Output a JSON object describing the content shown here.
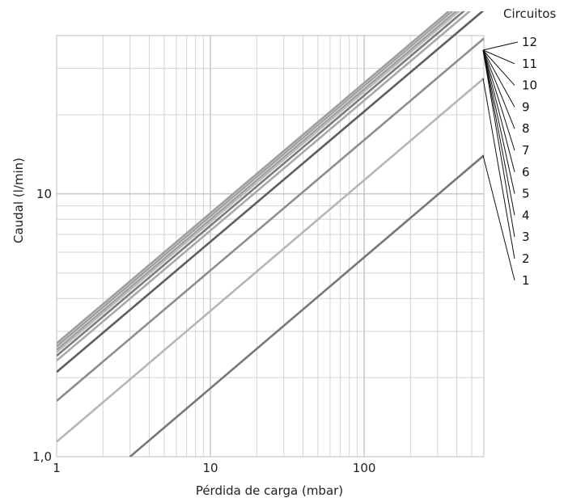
{
  "chart_data": {
    "type": "line",
    "xlabel": "Pérdida de carga (mbar)",
    "ylabel": "Caudal (l/min)",
    "xscale": "log",
    "yscale": "log",
    "xlim": [
      1,
      600
    ],
    "ylim": [
      1,
      40
    ],
    "x_ticks": [
      {
        "value": 1,
        "label": "1"
      },
      {
        "value": 10,
        "label": "10"
      },
      {
        "value": 100,
        "label": "100"
      }
    ],
    "y_ticks": [
      {
        "value": 1,
        "label": "1,0"
      },
      {
        "value": 10,
        "label": "10"
      }
    ],
    "grid": true,
    "legend_title": "Circuitos",
    "series": [
      {
        "name": "1",
        "color": "#777777",
        "points": [
          [
            3.0,
            1.0
          ],
          [
            600,
            14.0
          ]
        ]
      },
      {
        "name": "2",
        "color": "#b6b6b6",
        "points": [
          [
            1,
            1.14
          ],
          [
            600,
            27.5
          ]
        ]
      },
      {
        "name": "3",
        "color": "#8e8e8e",
        "points": [
          [
            1,
            1.63
          ],
          [
            600,
            39.0
          ]
        ]
      },
      {
        "name": "4",
        "color": "#5e5e5e",
        "points": [
          [
            1,
            2.1
          ],
          [
            600,
            50.0
          ]
        ]
      },
      {
        "name": "5",
        "color": "#a8a8a8",
        "points": [
          [
            1,
            2.32
          ],
          [
            600,
            55.0
          ]
        ]
      },
      {
        "name": "6",
        "color": "#7b7b7b",
        "points": [
          [
            1,
            2.42
          ],
          [
            600,
            57.5
          ]
        ]
      },
      {
        "name": "7",
        "color": "#bbbbbb",
        "points": [
          [
            1,
            2.5
          ],
          [
            600,
            59.5
          ]
        ]
      },
      {
        "name": "8",
        "color": "#999999",
        "points": [
          [
            1,
            2.56
          ],
          [
            600,
            61.0
          ]
        ]
      },
      {
        "name": "9",
        "color": "#cccccc",
        "points": [
          [
            1,
            2.6
          ],
          [
            600,
            62.0
          ]
        ]
      },
      {
        "name": "10",
        "color": "#8a8a8a",
        "points": [
          [
            1,
            2.64
          ],
          [
            600,
            63.0
          ]
        ]
      },
      {
        "name": "11",
        "color": "#c4c4c4",
        "points": [
          [
            1,
            2.67
          ],
          [
            600,
            63.6
          ]
        ]
      },
      {
        "name": "12",
        "color": "#a0a0a0",
        "points": [
          [
            1,
            2.7
          ],
          [
            600,
            64.2
          ]
        ]
      }
    ]
  }
}
